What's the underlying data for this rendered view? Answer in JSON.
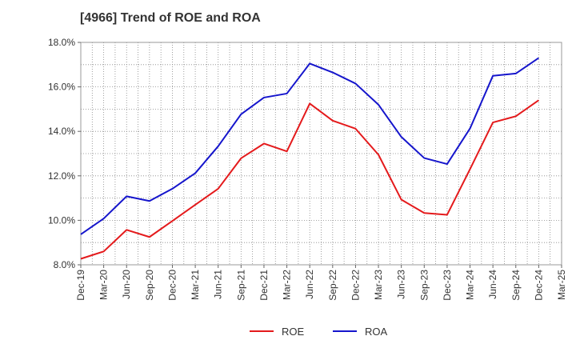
{
  "chart_data": {
    "type": "line",
    "title": "[4966]  Trend of ROE and ROA",
    "xlabel": "",
    "ylabel": "",
    "categories": [
      "Dec-19",
      "Mar-20",
      "Jun-20",
      "Sep-20",
      "Dec-20",
      "Mar-21",
      "Jun-21",
      "Sep-21",
      "Dec-21",
      "Mar-22",
      "Jun-22",
      "Sep-22",
      "Dec-22",
      "Mar-23",
      "Jun-23",
      "Sep-23",
      "Dec-23",
      "Mar-24",
      "Jun-24",
      "Sep-24",
      "Dec-24",
      "Mar-25"
    ],
    "ylim": [
      8.0,
      18.0
    ],
    "yticks": [
      "8.0%",
      "10.0%",
      "12.0%",
      "14.0%",
      "16.0%",
      "18.0%"
    ],
    "grid": true,
    "legend_position": "bottom-center",
    "series": [
      {
        "name": "ROE",
        "color": "#e41a1c",
        "values": [
          8.27,
          8.6,
          9.57,
          9.25,
          9.97,
          10.7,
          11.42,
          12.79,
          13.45,
          13.1,
          15.25,
          14.48,
          14.12,
          12.95,
          10.93,
          10.33,
          10.25,
          12.3,
          14.4,
          14.68,
          15.4,
          null
        ]
      },
      {
        "name": "ROA",
        "color": "#1515cc",
        "values": [
          9.37,
          10.08,
          11.08,
          10.87,
          11.42,
          12.12,
          13.33,
          14.77,
          15.52,
          15.7,
          17.05,
          16.65,
          16.15,
          15.2,
          13.75,
          12.8,
          12.53,
          14.13,
          16.5,
          16.6,
          17.3,
          null
        ]
      }
    ]
  }
}
